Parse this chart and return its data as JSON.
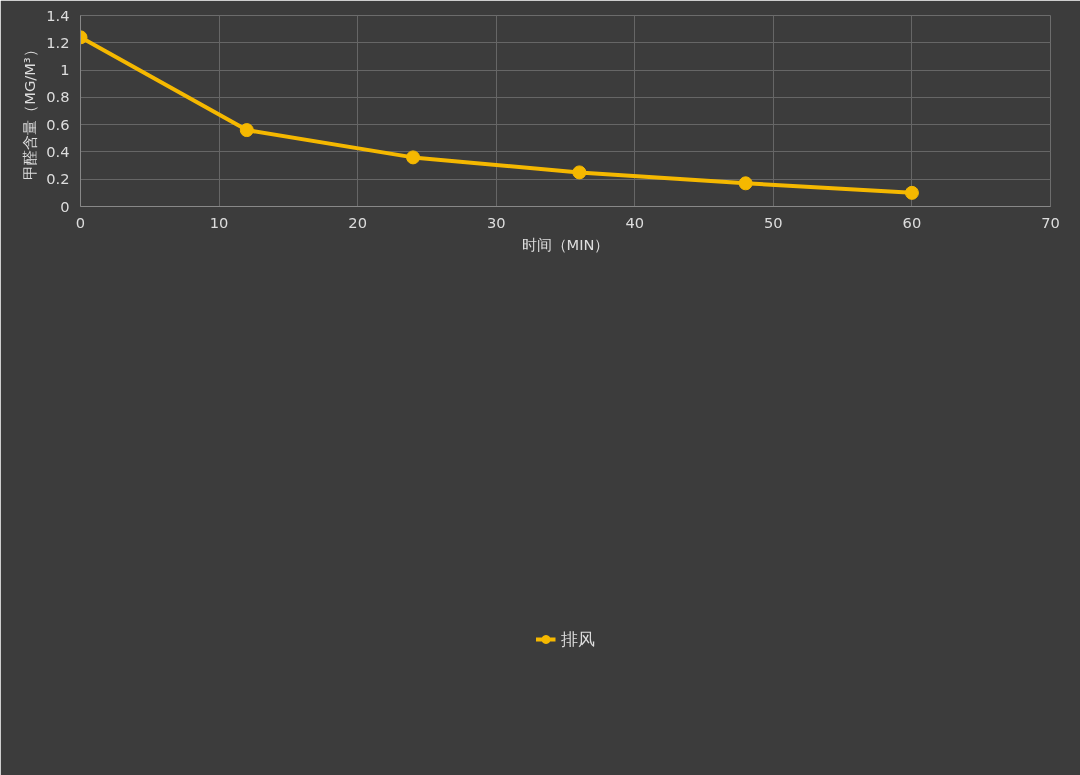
{
  "chart_data": {
    "type": "line",
    "xlabel": "时间（MIN）",
    "ylabel": "甲醛含量（MG/M³）",
    "x": [
      0,
      12,
      24,
      36,
      48,
      60
    ],
    "series": [
      {
        "name": "排风",
        "color": "#f5b800",
        "values": [
          1.24,
          0.56,
          0.36,
          0.25,
          0.17,
          0.1
        ]
      }
    ],
    "xlim": [
      0,
      70
    ],
    "xticks": [
      0,
      10,
      20,
      30,
      40,
      50,
      60,
      70
    ],
    "ylim": [
      0,
      1.4
    ],
    "yticks": [
      0,
      0.2,
      0.4,
      0.6,
      0.8,
      1,
      1.2,
      1.4
    ],
    "grid": true,
    "legend": "bottom",
    "marker": "circle",
    "line_style": "solid"
  }
}
